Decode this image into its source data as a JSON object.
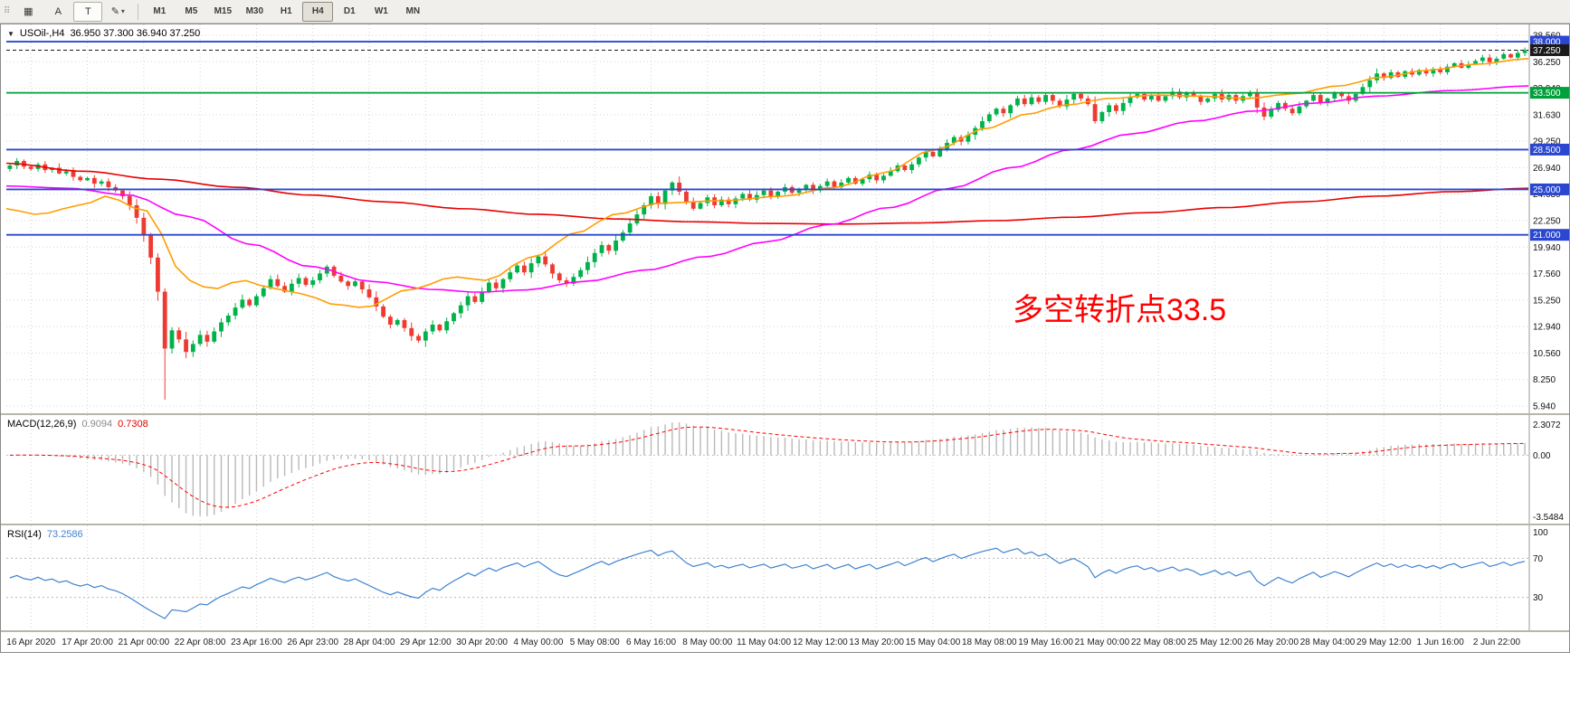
{
  "icons": {
    "grip": "⠿",
    "grid": "▦",
    "a": "A",
    "t": "T",
    "pencil": "✎",
    "caret": "▾",
    "collapse": "▼"
  },
  "toolbar": {
    "timeframes": [
      "M1",
      "M5",
      "M15",
      "M30",
      "H1",
      "H4",
      "D1",
      "W1",
      "MN"
    ],
    "active_timeframe": "H4"
  },
  "chart": {
    "title": "USOil-,H4",
    "quote": "36.950 37.300 36.940 37.250"
  },
  "annotation": {
    "text": "多空转折点33.5",
    "color": "#ff0000"
  },
  "macd": {
    "label": "MACD(12,26,9)",
    "value_main": "0.9094",
    "value_signal": "0.7308",
    "ticks": [
      "2.3072",
      "0.00",
      "-3.5484"
    ]
  },
  "rsi": {
    "label": "RSI(14)",
    "value": "73.2586",
    "ticks": [
      "100",
      "70",
      "30"
    ],
    "levels": [
      70,
      30
    ]
  },
  "chart_data": {
    "type": "candlestick",
    "symbol": "USOil-",
    "timeframe": "H4",
    "title": "USOil-,H4 36.950 37.300 36.940 37.250",
    "y_ticks": [
      "38.560",
      "36.250",
      "33.940",
      "31.630",
      "29.250",
      "26.940",
      "24.630",
      "22.250",
      "19.940",
      "17.560",
      "15.250",
      "12.940",
      "10.560",
      "8.250",
      "5.940"
    ],
    "x_labels": [
      "16 Apr 2020",
      "17 Apr 20:00",
      "21 Apr 00:00",
      "22 Apr 08:00",
      "23 Apr 16:00",
      "26 Apr 23:00",
      "28 Apr 04:00",
      "29 Apr 12:00",
      "30 Apr 20:00",
      "4 May 00:00",
      "5 May 08:00",
      "6 May 16:00",
      "8 May 00:00",
      "11 May 04:00",
      "12 May 12:00",
      "13 May 20:00",
      "15 May 04:00",
      "18 May 08:00",
      "19 May 16:00",
      "21 May 00:00",
      "22 May 08:00",
      "25 May 12:00",
      "26 May 20:00",
      "28 May 04:00",
      "29 May 12:00",
      "1 Jun 16:00",
      "2 Jun 22:00"
    ],
    "bars_per_label": 8,
    "first_label_bar": 3,
    "open_first": 26.8,
    "closes": [
      27.1,
      27.5,
      27.0,
      26.8,
      27.2,
      26.7,
      26.9,
      26.4,
      26.6,
      26.1,
      25.8,
      26.0,
      25.5,
      25.7,
      25.2,
      24.9,
      24.4,
      23.6,
      22.5,
      21.0,
      19.0,
      16.0,
      11.0,
      12.6,
      11.8,
      10.7,
      11.4,
      12.2,
      11.6,
      12.5,
      13.3,
      13.9,
      14.6,
      15.3,
      14.8,
      15.6,
      16.3,
      17.1,
      16.5,
      16.0,
      16.7,
      17.2,
      16.6,
      17.0,
      17.6,
      18.2,
      17.4,
      16.9,
      16.5,
      16.9,
      16.2,
      15.5,
      14.7,
      13.8,
      13.1,
      13.5,
      12.8,
      12.1,
      11.7,
      12.5,
      13.1,
      12.6,
      13.4,
      14.1,
      14.8,
      15.6,
      15.1,
      16.0,
      16.8,
      16.3,
      17.1,
      17.7,
      18.3,
      17.7,
      18.5,
      19.1,
      18.4,
      17.6,
      17.0,
      16.7,
      17.3,
      17.9,
      18.6,
      19.4,
      20.1,
      19.6,
      20.5,
      21.2,
      22.0,
      22.8,
      23.6,
      24.4,
      23.7,
      24.9,
      25.6,
      24.8,
      23.9,
      23.3,
      23.8,
      24.3,
      23.6,
      24.1,
      23.7,
      24.2,
      24.6,
      24.1,
      24.5,
      24.9,
      24.4,
      24.8,
      25.2,
      24.7,
      25.0,
      25.4,
      24.9,
      25.3,
      25.7,
      25.2,
      25.6,
      26.0,
      25.5,
      25.9,
      26.3,
      25.8,
      26.2,
      26.6,
      27.1,
      26.7,
      27.2,
      27.8,
      28.3,
      27.9,
      28.5,
      29.1,
      29.6,
      29.2,
      29.8,
      30.4,
      31.0,
      31.6,
      32.1,
      31.7,
      32.4,
      33.0,
      32.5,
      33.1,
      32.7,
      33.3,
      32.8,
      32.3,
      32.9,
      33.4,
      33.0,
      32.5,
      31.0,
      31.8,
      32.4,
      31.9,
      32.6,
      33.1,
      33.4,
      32.9,
      33.3,
      32.8,
      33.2,
      33.6,
      33.1,
      33.5,
      33.2,
      32.7,
      33.0,
      33.4,
      32.9,
      33.3,
      32.8,
      33.2,
      33.5,
      32.2,
      31.4,
      32.0,
      32.6,
      32.1,
      31.7,
      32.3,
      32.8,
      33.3,
      32.6,
      33.0,
      33.5,
      33.2,
      32.8,
      33.4,
      34.0,
      34.6,
      35.2,
      34.8,
      35.3,
      34.9,
      35.4,
      35.1,
      35.5,
      35.2,
      35.6,
      35.3,
      35.8,
      36.1,
      35.7,
      36.0,
      36.3,
      36.6,
      36.2,
      36.5,
      36.9,
      36.6,
      37.0,
      37.25
    ],
    "spike_low": {
      "index": 22,
      "price": 6.5
    },
    "bid": {
      "price": 37.25,
      "label": "37.250"
    },
    "levels": [
      {
        "price": 38.0,
        "label": "38.000",
        "color": "#2b47cf"
      },
      {
        "price": 33.5,
        "label": "33.500",
        "color": "#00a13a"
      },
      {
        "price": 28.5,
        "label": "28.500",
        "color": "#2b47cf"
      },
      {
        "price": 25.0,
        "label": "25.000",
        "color": "#2b47cf"
      },
      {
        "price": 21.0,
        "label": "21.000",
        "color": "#2b47cf"
      }
    ],
    "moving_averages": [
      {
        "name": "slow",
        "color": "#e90000",
        "points": [
          [
            0,
            27.3
          ],
          [
            0.05,
            26.6
          ],
          [
            0.1,
            25.9
          ],
          [
            0.15,
            25.2
          ],
          [
            0.2,
            24.5
          ],
          [
            0.25,
            23.9
          ],
          [
            0.3,
            23.3
          ],
          [
            0.35,
            22.8
          ],
          [
            0.4,
            22.4
          ],
          [
            0.45,
            22.15
          ],
          [
            0.5,
            22.0
          ],
          [
            0.55,
            21.95
          ],
          [
            0.6,
            22.05
          ],
          [
            0.65,
            22.25
          ],
          [
            0.7,
            22.55
          ],
          [
            0.75,
            22.95
          ],
          [
            0.8,
            23.4
          ],
          [
            0.85,
            23.9
          ],
          [
            0.9,
            24.4
          ],
          [
            0.95,
            24.8
          ],
          [
            1,
            25.1
          ]
        ]
      },
      {
        "name": "medium",
        "color": "#ff00ff",
        "points": [
          [
            0,
            25.3
          ],
          [
            0.04,
            25.1
          ],
          [
            0.08,
            24.5
          ],
          [
            0.12,
            22.6
          ],
          [
            0.16,
            20.2
          ],
          [
            0.2,
            18.2
          ],
          [
            0.24,
            16.9
          ],
          [
            0.28,
            16.2
          ],
          [
            0.31,
            15.95
          ],
          [
            0.34,
            16.15
          ],
          [
            0.38,
            16.9
          ],
          [
            0.42,
            17.9
          ],
          [
            0.46,
            19.1
          ],
          [
            0.5,
            20.4
          ],
          [
            0.54,
            21.9
          ],
          [
            0.58,
            23.4
          ],
          [
            0.62,
            25.1
          ],
          [
            0.66,
            26.9
          ],
          [
            0.7,
            28.5
          ],
          [
            0.74,
            29.9
          ],
          [
            0.78,
            31.0
          ],
          [
            0.82,
            31.9
          ],
          [
            0.86,
            32.6
          ],
          [
            0.9,
            33.2
          ],
          [
            0.95,
            33.7
          ],
          [
            1,
            34.1
          ]
        ]
      },
      {
        "name": "fast",
        "color": "#ff9d00",
        "points": [
          [
            0,
            23.3
          ],
          [
            0.02,
            22.8
          ],
          [
            0.05,
            23.6
          ],
          [
            0.065,
            24.4
          ],
          [
            0.09,
            23.2
          ],
          [
            0.12,
            17.0
          ],
          [
            0.135,
            16.2
          ],
          [
            0.155,
            17.0
          ],
          [
            0.175,
            16.3
          ],
          [
            0.195,
            15.8
          ],
          [
            0.215,
            14.9
          ],
          [
            0.235,
            14.6
          ],
          [
            0.265,
            16.2
          ],
          [
            0.295,
            17.3
          ],
          [
            0.315,
            17.0
          ],
          [
            0.345,
            19.0
          ],
          [
            0.375,
            21.2
          ],
          [
            0.4,
            22.8
          ],
          [
            0.43,
            23.8
          ],
          [
            0.47,
            24.0
          ],
          [
            0.51,
            24.4
          ],
          [
            0.545,
            25.2
          ],
          [
            0.575,
            26.4
          ],
          [
            0.61,
            28.5
          ],
          [
            0.645,
            30.4
          ],
          [
            0.67,
            31.6
          ],
          [
            0.695,
            32.4
          ],
          [
            0.725,
            33.0
          ],
          [
            0.755,
            33.3
          ],
          [
            0.785,
            33.2
          ],
          [
            0.815,
            33.0
          ],
          [
            0.845,
            33.4
          ],
          [
            0.875,
            34.1
          ],
          [
            0.905,
            34.9
          ],
          [
            0.935,
            35.5
          ],
          [
            0.965,
            36.0
          ],
          [
            1,
            36.5
          ]
        ]
      }
    ],
    "colors": {
      "up": "#00b24a",
      "down": "#ee3b32",
      "grid": "#d4d4d4",
      "macd_hist": "#b9b9b9",
      "macd_signal": "#ff0000",
      "rsi": "#3e83d0",
      "bid": "#1a1a1a"
    },
    "indicators": {
      "macd": {
        "fast": 12,
        "slow": 26,
        "signal": 9
      },
      "rsi": {
        "period": 14
      }
    }
  }
}
